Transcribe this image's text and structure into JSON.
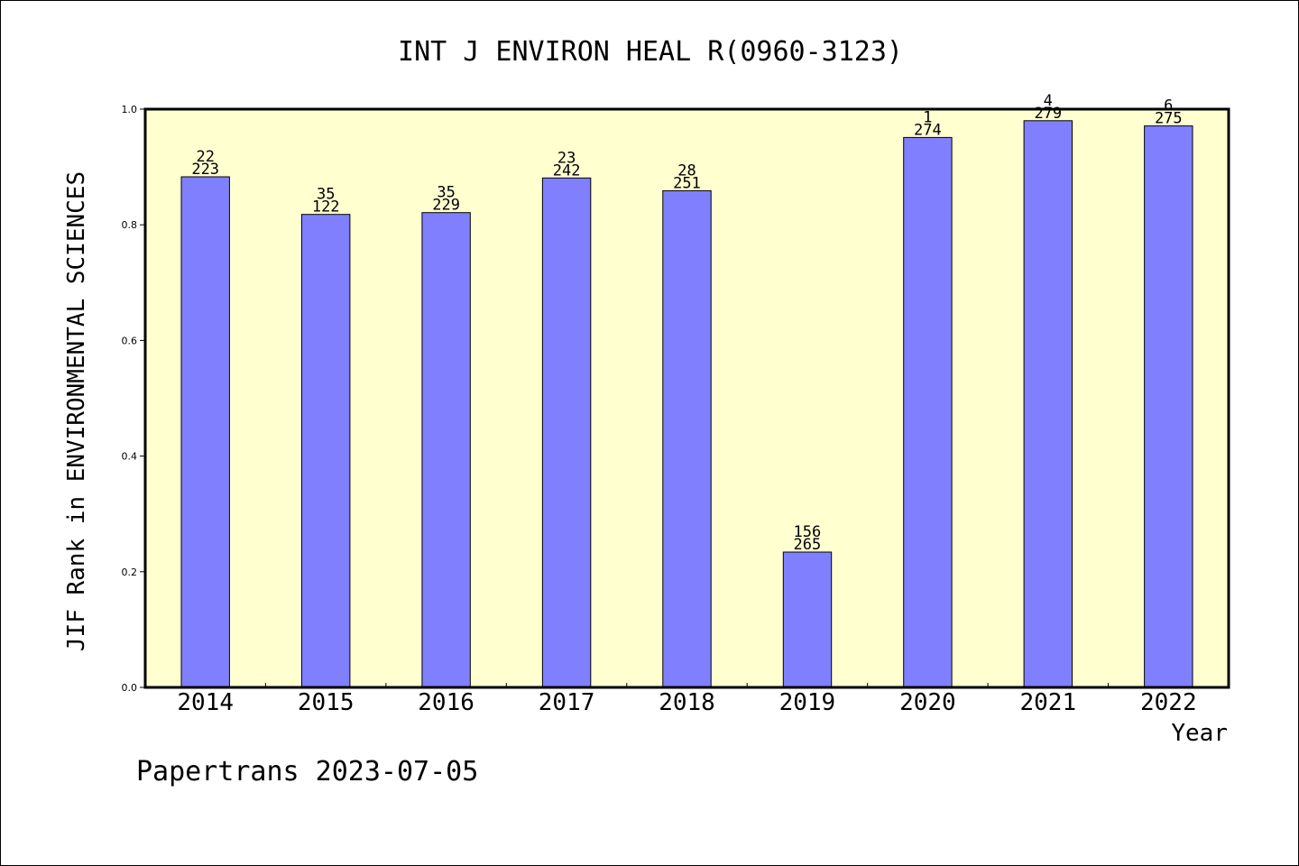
{
  "chart_data": {
    "type": "bar",
    "title": "INT J ENVIRON HEAL R(0960-3123)",
    "xlabel": "Year",
    "ylabel": "JIF Rank in ENVIRONMENTAL SCIENCES",
    "categories": [
      "2014",
      "2015",
      "2016",
      "2017",
      "2018",
      "2019",
      "2020",
      "2021",
      "2022"
    ],
    "values": [
      0.883,
      0.818,
      0.821,
      0.881,
      0.859,
      0.234,
      0.951,
      0.98,
      0.971
    ],
    "label_top": [
      "22",
      "35",
      "35",
      "23",
      "28",
      "156",
      "1",
      "4",
      "6"
    ],
    "label_bottom": [
      "223",
      "122",
      "229",
      "242",
      "251",
      "265",
      "274",
      "279",
      "275"
    ],
    "ylim": [
      0,
      1.0
    ],
    "yticks": [
      "0.0",
      "0.2",
      "0.4",
      "0.6",
      "0.8",
      "1.0"
    ],
    "grid": false,
    "colors": {
      "bar": "#8080ff",
      "plot_bg": "#ffffd0",
      "axes": "#000000"
    }
  },
  "footer": {
    "text": "Papertrans 2023-07-05"
  }
}
